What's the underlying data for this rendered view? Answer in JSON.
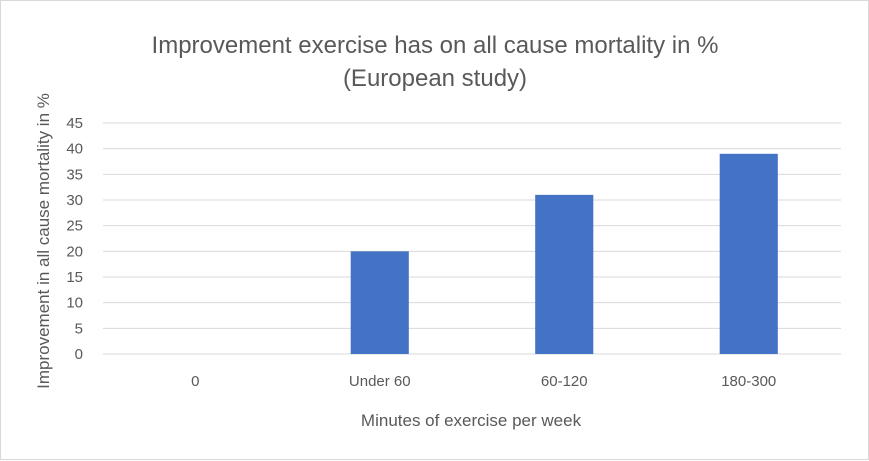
{
  "chart_data": {
    "type": "bar",
    "title": "Improvement exercise has on all cause mortality in %",
    "subtitle": "(European study)",
    "xlabel": "Minutes of exercise per week",
    "ylabel": "Improvement in all cause mortality in %",
    "categories": [
      "0",
      "Under 60",
      "60-120",
      "180-300"
    ],
    "values": [
      0,
      20,
      31,
      39
    ],
    "ylim": [
      0,
      45
    ],
    "yticks": [
      "0",
      "5",
      "10",
      "15",
      "20",
      "25",
      "30",
      "35",
      "40",
      "45"
    ],
    "grid": true,
    "legend": "none",
    "bar_color": "#4472c4"
  }
}
